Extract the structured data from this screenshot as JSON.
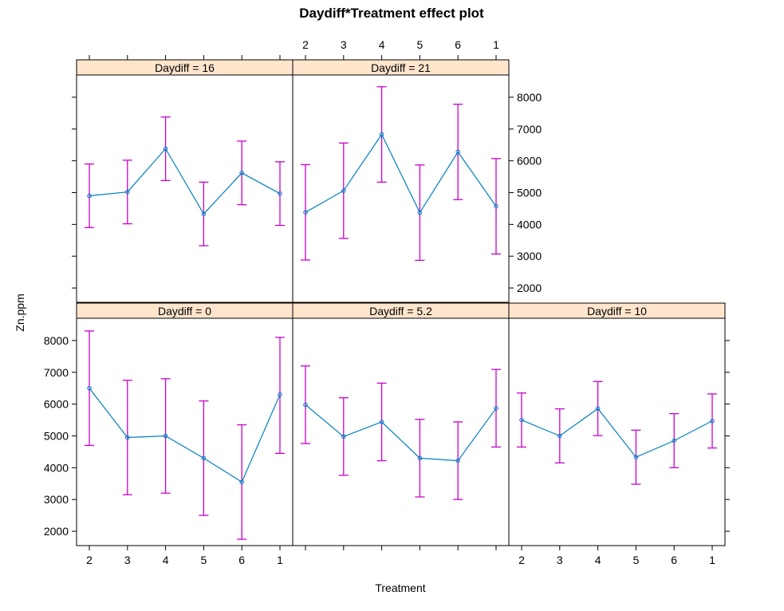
{
  "chart_data": {
    "type": "line",
    "title": "Daydiff*Treatment effect plot",
    "xlabel": "Treatment",
    "ylabel": "Zn.ppm",
    "categories": [
      "2",
      "3",
      "4",
      "5",
      "6",
      "1"
    ],
    "yticks": [
      "2000",
      "3000",
      "4000",
      "5000",
      "6000",
      "7000",
      "8000"
    ],
    "ylim": [
      1550,
      8700
    ],
    "colors": {
      "line": "#0080c0",
      "error_bar": "#cc00cc",
      "strip": "#ffe5cc",
      "frame": "#000000"
    },
    "panels": [
      {
        "label": "Daydiff = 0",
        "fit": [
          6500,
          4950,
          5000,
          4300,
          3550,
          6300
        ],
        "lower": [
          4700,
          3150,
          3200,
          2500,
          1750,
          4450
        ],
        "upper": [
          8300,
          6750,
          6800,
          6100,
          5350,
          8100
        ]
      },
      {
        "label": "Daydiff = 5.2",
        "fit": [
          5980,
          4980,
          5440,
          4300,
          4220,
          5870
        ],
        "lower": [
          4760,
          3760,
          4220,
          3080,
          3000,
          4650
        ],
        "upper": [
          7200,
          6200,
          6660,
          5520,
          5440,
          7090
        ]
      },
      {
        "label": "Daydiff = 10",
        "fit": [
          5500,
          5000,
          5860,
          4330,
          4850,
          5470
        ],
        "lower": [
          4650,
          4150,
          5010,
          3480,
          4000,
          4620
        ],
        "upper": [
          6350,
          5850,
          6710,
          5180,
          5700,
          6320
        ]
      },
      {
        "label": "Daydiff = 16",
        "fit": [
          4900,
          5020,
          6380,
          4330,
          5620,
          4970
        ],
        "lower": [
          3900,
          4020,
          5380,
          3330,
          4620,
          3970
        ],
        "upper": [
          5900,
          6020,
          7380,
          5330,
          6620,
          5970
        ]
      },
      {
        "label": "Daydiff = 21",
        "fit": [
          4380,
          5060,
          6830,
          4370,
          6280,
          4570
        ],
        "lower": [
          2880,
          3560,
          5330,
          2870,
          4780,
          3070
        ],
        "upper": [
          5880,
          6560,
          8330,
          5870,
          7780,
          6070
        ]
      }
    ]
  }
}
